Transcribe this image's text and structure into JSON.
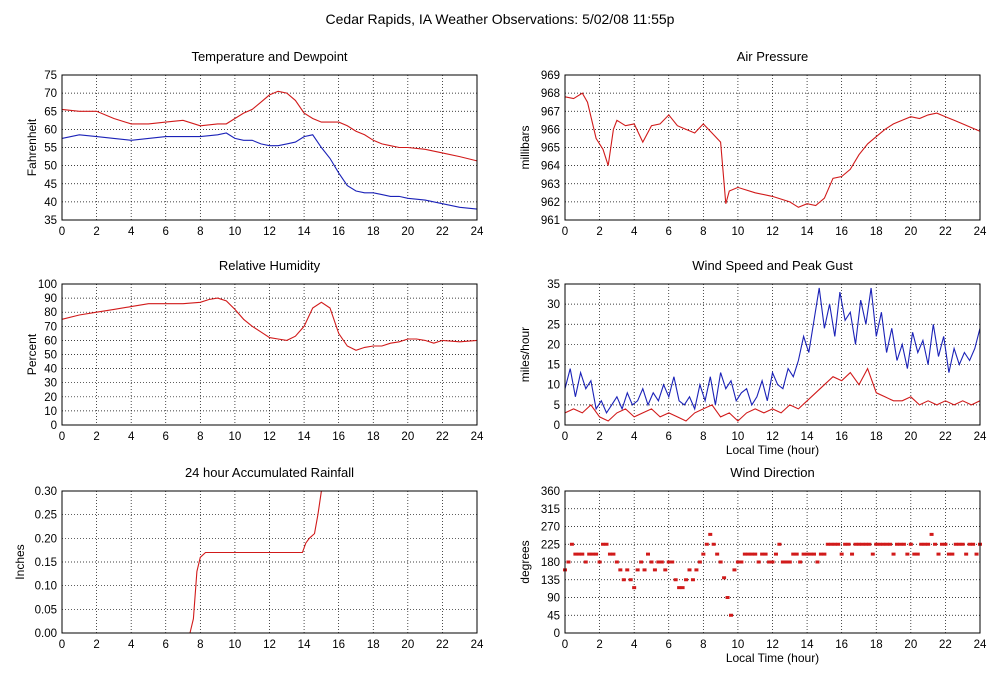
{
  "page": {
    "title": "Cedar Rapids, IA Weather Observations: 5/02/08 11:55p"
  },
  "colors": {
    "red": "#d11a1a",
    "blue": "#1b22b8"
  },
  "chart_data": [
    {
      "id": "temp",
      "type": "line",
      "title": "Temperature and Dewpoint",
      "ylabel": "Fahrenheit",
      "xlabel": "",
      "xlim": [
        0,
        24
      ],
      "ylim": [
        35,
        75
      ],
      "x_ticks": [
        "0",
        "2",
        "4",
        "6",
        "8",
        "10",
        "12",
        "14",
        "16",
        "18",
        "20",
        "22",
        "24"
      ],
      "y_ticks": [
        "35",
        "40",
        "45",
        "50",
        "55",
        "60",
        "65",
        "70",
        "75"
      ],
      "grid": true,
      "series": [
        {
          "color": "#d11a1a",
          "x": [
            0,
            1,
            2,
            3,
            4,
            5,
            6,
            7,
            8,
            9,
            9.5,
            10,
            10.5,
            11,
            11.5,
            12,
            12.5,
            13,
            13.5,
            14,
            14.5,
            15,
            15.5,
            16,
            16.5,
            17,
            17.5,
            18,
            18.5,
            19,
            19.5,
            20,
            21,
            22,
            23,
            24
          ],
          "y": [
            65.5,
            65,
            65,
            63,
            61.5,
            61.5,
            62,
            62.5,
            61,
            61.5,
            61.5,
            63,
            64.5,
            65.5,
            67.5,
            69.5,
            70.5,
            70,
            68,
            64.5,
            63,
            62,
            62,
            62,
            61,
            59.5,
            58.5,
            57,
            56,
            55.5,
            55,
            55,
            54.5,
            53.5,
            52.5,
            51.3
          ]
        },
        {
          "color": "#1b22b8",
          "x": [
            0,
            1,
            2,
            3,
            4,
            5,
            6,
            7,
            8,
            9,
            9.5,
            10,
            10.5,
            11,
            11.5,
            12,
            12.5,
            13,
            13.5,
            14,
            14.5,
            15,
            15.5,
            16,
            16.5,
            17,
            17.5,
            18,
            18.5,
            19,
            19.5,
            20,
            21,
            22,
            23,
            24
          ],
          "y": [
            57.5,
            58.5,
            58,
            57.5,
            57,
            57.5,
            58,
            58,
            58,
            58.5,
            59,
            57.5,
            57,
            57,
            56,
            55.5,
            55.5,
            56,
            56.5,
            58,
            58.5,
            55,
            52,
            48,
            44.5,
            43,
            42.5,
            42.5,
            42,
            41.5,
            41.5,
            41,
            40.5,
            39.5,
            38.5,
            38
          ]
        }
      ]
    },
    {
      "id": "pressure",
      "type": "line",
      "title": "Air Pressure",
      "ylabel": "millibars",
      "xlabel": "",
      "xlim": [
        0,
        24
      ],
      "ylim": [
        961,
        969
      ],
      "x_ticks": [
        "0",
        "2",
        "4",
        "6",
        "8",
        "10",
        "12",
        "14",
        "16",
        "18",
        "20",
        "22",
        "24"
      ],
      "y_ticks": [
        "961",
        "962",
        "963",
        "964",
        "965",
        "966",
        "967",
        "968",
        "969"
      ],
      "grid": true,
      "series": [
        {
          "color": "#d11a1a",
          "x": [
            0,
            0.5,
            1,
            1.3,
            1.8,
            2.2,
            2.5,
            2.8,
            3,
            3.5,
            4,
            4.5,
            5,
            5.5,
            6,
            6.5,
            7,
            7.5,
            8,
            8.5,
            9,
            9.3,
            9.5,
            10,
            11,
            12,
            13,
            13.5,
            14,
            14.5,
            15,
            15.5,
            16,
            16.5,
            17,
            17.5,
            18,
            18.5,
            19,
            19.5,
            20,
            20.5,
            21,
            21.5,
            22,
            22.5,
            23,
            23.5,
            24
          ],
          "y": [
            967.8,
            967.7,
            968,
            967.5,
            965.5,
            964.9,
            964,
            966,
            966.5,
            966.2,
            966.3,
            965.3,
            966.2,
            966.3,
            966.8,
            966.2,
            966,
            965.8,
            966.3,
            965.8,
            965.3,
            961.9,
            962.6,
            962.8,
            962.5,
            962.3,
            962,
            961.7,
            961.9,
            961.8,
            962.2,
            963.3,
            963.4,
            963.8,
            964.6,
            965.2,
            965.6,
            966,
            966.3,
            966.5,
            966.7,
            966.6,
            966.8,
            966.9,
            966.7,
            966.5,
            966.3,
            966.1,
            965.9
          ]
        }
      ]
    },
    {
      "id": "humidity",
      "type": "line",
      "title": "Relative Humidity",
      "ylabel": "Percent",
      "xlabel": "",
      "xlim": [
        0,
        24
      ],
      "ylim": [
        0,
        100
      ],
      "x_ticks": [
        "0",
        "2",
        "4",
        "6",
        "8",
        "10",
        "12",
        "14",
        "16",
        "18",
        "20",
        "22",
        "24"
      ],
      "y_ticks": [
        "0",
        "10",
        "20",
        "30",
        "40",
        "50",
        "60",
        "70",
        "80",
        "90",
        "100"
      ],
      "grid": true,
      "series": [
        {
          "color": "#d11a1a",
          "x": [
            0,
            1,
            2,
            3,
            4,
            5,
            6,
            7,
            8,
            8.5,
            9,
            9.5,
            10,
            10.5,
            11,
            11.5,
            12,
            12.5,
            13,
            13.5,
            14,
            14.5,
            15,
            15.5,
            16,
            16.5,
            17,
            17.5,
            18,
            18.5,
            19,
            19.5,
            20,
            20.5,
            21,
            21.5,
            22,
            23,
            24
          ],
          "y": [
            75,
            78,
            80,
            82,
            84,
            86,
            86,
            86,
            87,
            89,
            90,
            88,
            82,
            75,
            70,
            66,
            62,
            61,
            60,
            63,
            70,
            83,
            87,
            83,
            65,
            56,
            53,
            55,
            56,
            56,
            58,
            59,
            61,
            61,
            60,
            58,
            60,
            59,
            60
          ]
        }
      ]
    },
    {
      "id": "wind",
      "type": "line",
      "title": "Wind Speed and Peak Gust",
      "ylabel": "miles/hour",
      "xlabel": "Local Time (hour)",
      "xlim": [
        0,
        24
      ],
      "ylim": [
        0,
        35
      ],
      "x_ticks": [
        "0",
        "2",
        "4",
        "6",
        "8",
        "10",
        "12",
        "14",
        "16",
        "18",
        "20",
        "22",
        "24"
      ],
      "y_ticks": [
        "0",
        "5",
        "10",
        "15",
        "20",
        "25",
        "30",
        "35"
      ],
      "grid": true,
      "series": [
        {
          "color": "#1b22b8",
          "x": [
            0,
            0.3,
            0.6,
            0.9,
            1.2,
            1.5,
            1.8,
            2.1,
            2.4,
            2.7,
            3,
            3.3,
            3.6,
            3.9,
            4.2,
            4.5,
            4.8,
            5.1,
            5.4,
            5.7,
            6,
            6.3,
            6.6,
            6.9,
            7.2,
            7.5,
            7.8,
            8.1,
            8.4,
            8.7,
            9,
            9.3,
            9.6,
            9.9,
            10.2,
            10.5,
            10.8,
            11.1,
            11.4,
            11.7,
            12,
            12.3,
            12.6,
            12.9,
            13.2,
            13.5,
            13.8,
            14.1,
            14.4,
            14.7,
            15,
            15.3,
            15.6,
            15.9,
            16.2,
            16.5,
            16.8,
            17.1,
            17.4,
            17.7,
            18,
            18.3,
            18.6,
            18.9,
            19.2,
            19.5,
            19.8,
            20.1,
            20.4,
            20.7,
            21,
            21.3,
            21.6,
            21.9,
            22.2,
            22.5,
            22.8,
            23.1,
            23.4,
            23.7,
            24
          ],
          "y": [
            9,
            14,
            7,
            13,
            9,
            11,
            4,
            6,
            3,
            5,
            7,
            4,
            8,
            5,
            6,
            9,
            5,
            8,
            6,
            10,
            7,
            12,
            6,
            5,
            7,
            4,
            10,
            6,
            12,
            5,
            13,
            9,
            11,
            6,
            8,
            9,
            5,
            7,
            11,
            6,
            13,
            10,
            9,
            14,
            12,
            16,
            22,
            18,
            26,
            34,
            24,
            30,
            22,
            33,
            26,
            28,
            20,
            31,
            25,
            34,
            22,
            28,
            18,
            24,
            16,
            20,
            14,
            23,
            18,
            21,
            15,
            25,
            17,
            22,
            13,
            19,
            15,
            18,
            16,
            19,
            24
          ]
        },
        {
          "color": "#d11a1a",
          "x": [
            0,
            0.5,
            1,
            1.5,
            2,
            2.5,
            3,
            3.5,
            4,
            4.5,
            5,
            5.5,
            6,
            6.5,
            7,
            7.5,
            8,
            8.5,
            9,
            9.5,
            10,
            10.5,
            11,
            11.5,
            12,
            12.5,
            13,
            13.5,
            14,
            14.5,
            15,
            15.5,
            16,
            16.5,
            17,
            17.5,
            18,
            18.5,
            19,
            19.5,
            20,
            20.5,
            21,
            21.5,
            22,
            22.5,
            23,
            23.5,
            24
          ],
          "y": [
            3,
            4,
            3,
            5,
            2,
            1,
            3,
            4,
            2,
            3,
            4,
            2,
            3,
            2,
            1,
            3,
            4,
            5,
            2,
            3,
            1,
            3,
            4,
            3,
            4,
            3,
            5,
            4,
            6,
            8,
            10,
            12,
            11,
            13,
            10,
            14,
            8,
            7,
            6,
            6,
            7,
            5,
            6,
            5,
            6,
            5,
            6,
            5,
            6
          ]
        }
      ]
    },
    {
      "id": "rain",
      "type": "line",
      "title": "24 hour Accumulated Rainfall",
      "ylabel": "Inches",
      "xlabel": "",
      "xlim": [
        0,
        24
      ],
      "ylim": [
        0,
        0.3
      ],
      "x_ticks": [
        "0",
        "2",
        "4",
        "6",
        "8",
        "10",
        "12",
        "14",
        "16",
        "18",
        "20",
        "22",
        "24"
      ],
      "y_ticks": [
        "0.00",
        "0.05",
        "0.10",
        "0.15",
        "0.20",
        "0.25",
        "0.30"
      ],
      "grid": true,
      "series": [
        {
          "color": "#d11a1a",
          "x": [
            0,
            7.4,
            7.6,
            7.8,
            8,
            8.3,
            9,
            10,
            11,
            12,
            13,
            13.9,
            14.1,
            14.3,
            14.6,
            14.8,
            15.0
          ],
          "y": [
            0,
            0,
            0.03,
            0.13,
            0.16,
            0.17,
            0.17,
            0.17,
            0.17,
            0.17,
            0.17,
            0.17,
            0.19,
            0.2,
            0.21,
            0.25,
            0.3
          ]
        }
      ]
    },
    {
      "id": "direction",
      "type": "scatter",
      "title": "Wind Direction",
      "ylabel": "degrees",
      "xlabel": "Local Time (hour)",
      "xlim": [
        0,
        24
      ],
      "ylim": [
        0,
        360
      ],
      "x_ticks": [
        "0",
        "2",
        "4",
        "6",
        "8",
        "10",
        "12",
        "14",
        "16",
        "18",
        "20",
        "22",
        "24"
      ],
      "y_ticks": [
        "0",
        "45",
        "90",
        "135",
        "180",
        "225",
        "270",
        "315",
        "360"
      ],
      "grid": true,
      "series": [
        {
          "color": "#d11a1a",
          "x": [
            0,
            0.2,
            0.4,
            0.6,
            0.8,
            1,
            1.2,
            1.4,
            1.6,
            1.8,
            2,
            2.2,
            2.4,
            2.6,
            2.8,
            3,
            3.2,
            3.4,
            3.6,
            3.8,
            4,
            4.2,
            4.4,
            4.6,
            4.8,
            5,
            5.2,
            5.4,
            5.6,
            5.8,
            6,
            6.2,
            6.4,
            6.6,
            6.8,
            7,
            7.2,
            7.4,
            7.6,
            7.8,
            8,
            8.2,
            8.4,
            8.6,
            8.8,
            9,
            9.2,
            9.4,
            9.6,
            9.8,
            10,
            10.2,
            10.4,
            10.6,
            10.8,
            11,
            11.2,
            11.4,
            11.6,
            11.8,
            12,
            12.2,
            12.4,
            12.6,
            12.8,
            13,
            13.2,
            13.4,
            13.6,
            13.8,
            14,
            14.2,
            14.4,
            14.6,
            14.8,
            15,
            15.2,
            15.4,
            15.6,
            15.8,
            16,
            16.2,
            16.4,
            16.6,
            16.8,
            17,
            17.2,
            17.4,
            17.6,
            17.8,
            18,
            18.2,
            18.4,
            18.6,
            18.8,
            19,
            19.2,
            19.4,
            19.6,
            19.8,
            20,
            20.2,
            20.4,
            20.6,
            20.8,
            21,
            21.2,
            21.4,
            21.6,
            21.8,
            22,
            22.2,
            22.4,
            22.6,
            22.8,
            23,
            23.2,
            23.4,
            23.6,
            23.8,
            24
          ],
          "y": [
            160,
            180,
            225,
            200,
            200,
            200,
            180,
            200,
            200,
            200,
            180,
            225,
            225,
            200,
            200,
            180,
            160,
            135,
            160,
            135,
            115,
            160,
            180,
            160,
            200,
            180,
            160,
            180,
            180,
            160,
            180,
            180,
            135,
            115,
            115,
            135,
            160,
            135,
            160,
            180,
            200,
            225,
            250,
            225,
            200,
            180,
            140,
            90,
            45,
            160,
            180,
            180,
            200,
            200,
            200,
            200,
            180,
            200,
            200,
            180,
            180,
            200,
            225,
            180,
            180,
            180,
            200,
            200,
            180,
            200,
            200,
            200,
            200,
            180,
            200,
            200,
            225,
            225,
            225,
            225,
            200,
            225,
            225,
            200,
            225,
            225,
            225,
            225,
            225,
            200,
            225,
            225,
            225,
            225,
            225,
            200,
            225,
            225,
            225,
            200,
            225,
            200,
            200,
            225,
            225,
            225,
            250,
            225,
            200,
            225,
            225,
            200,
            200,
            225,
            225,
            225,
            200,
            225,
            225,
            200,
            225
          ]
        }
      ]
    }
  ]
}
